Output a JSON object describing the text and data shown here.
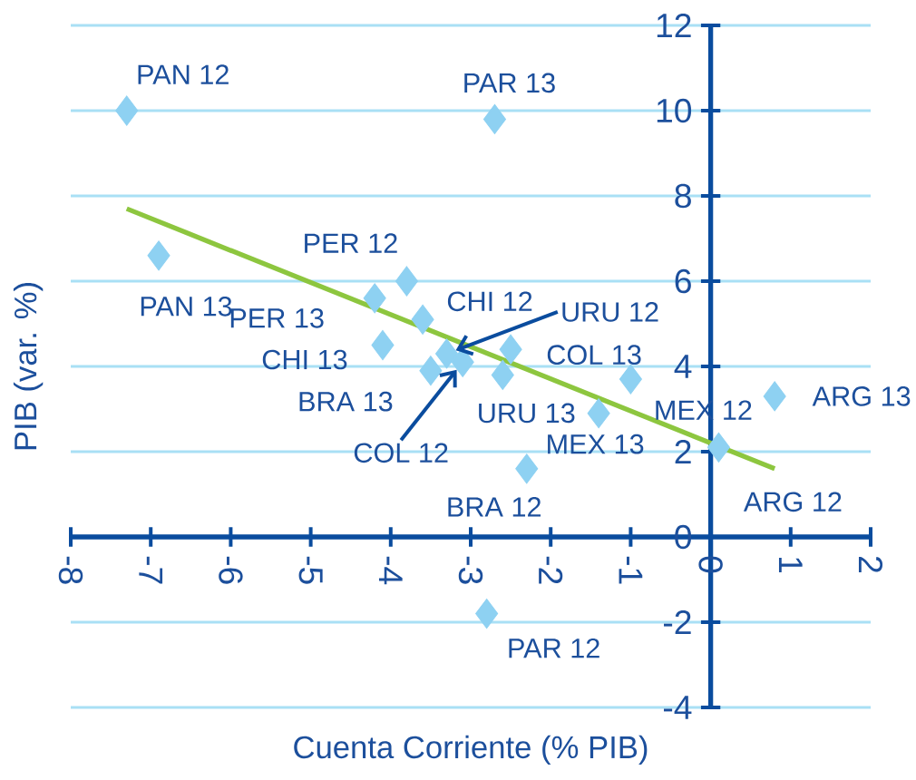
{
  "chart_data": {
    "type": "scatter",
    "xlabel": "Cuenta Corriente (% PIB)",
    "ylabel": "PIB (var. %)",
    "xlim": [
      -8,
      2
    ],
    "ylim": [
      -4,
      12
    ],
    "xticks": [
      -8,
      -7,
      -6,
      -5,
      -4,
      -3,
      -2,
      -1,
      0,
      1,
      2
    ],
    "yticks": [
      -4,
      -2,
      0,
      2,
      4,
      6,
      8,
      10,
      12
    ],
    "grid": "y",
    "series": [
      {
        "color": "#8ed1f2",
        "marker": "diamond",
        "x": [
          -7.3,
          -2.7,
          -6.9,
          -3.8,
          -4.2,
          -3.6,
          -4.1,
          -2.5,
          -3.5,
          -3.3,
          -3.1,
          -2.6,
          -1.0,
          -1.4,
          0.1,
          0.8,
          -2.3,
          -2.8
        ],
        "values": [
          10.0,
          9.8,
          6.6,
          6.0,
          5.6,
          5.1,
          4.5,
          4.4,
          3.9,
          4.3,
          4.1,
          3.8,
          3.7,
          2.9,
          2.1,
          3.3,
          1.6,
          -1.8
        ]
      },
      {
        "type": "line",
        "color": "#8dc63f",
        "line_style": "solid",
        "x": [
          -7.3,
          0.8
        ],
        "values": [
          7.7,
          1.6
        ]
      }
    ],
    "annotations": [
      {
        "text": "PAN 12",
        "x": -7.3,
        "y": 10.0
      },
      {
        "text": "PAR 13",
        "x": -2.7,
        "y": 9.8
      },
      {
        "text": "PAN 13",
        "x": -6.9,
        "y": 6.6
      },
      {
        "text": "PER 12",
        "x": -3.8,
        "y": 6.0
      },
      {
        "text": "PER 13",
        "x": -4.2,
        "y": 5.6
      },
      {
        "text": "CHI 12",
        "x": -3.6,
        "y": 5.1
      },
      {
        "text": "CHI 13",
        "x": -4.1,
        "y": 4.5
      },
      {
        "text": "COL 13",
        "x": -2.5,
        "y": 4.4
      },
      {
        "text": "BRA 13",
        "x": -3.5,
        "y": 3.9
      },
      {
        "text": "URU 12",
        "x": -3.3,
        "y": 4.3
      },
      {
        "text": "COL 12",
        "x": -3.1,
        "y": 4.1
      },
      {
        "text": "URU 13",
        "x": -2.6,
        "y": 3.8
      },
      {
        "text": "MEX 12",
        "x": -1.0,
        "y": 3.7
      },
      {
        "text": "MEX 13",
        "x": -1.4,
        "y": 2.9
      },
      {
        "text": "ARG 12",
        "x": 0.1,
        "y": 2.1
      },
      {
        "text": "ARG 13",
        "x": 0.8,
        "y": 3.3
      },
      {
        "text": "BRA 12",
        "x": -2.3,
        "y": 1.6
      },
      {
        "text": "PAR 12",
        "x": -2.8,
        "y": -1.8
      }
    ]
  }
}
